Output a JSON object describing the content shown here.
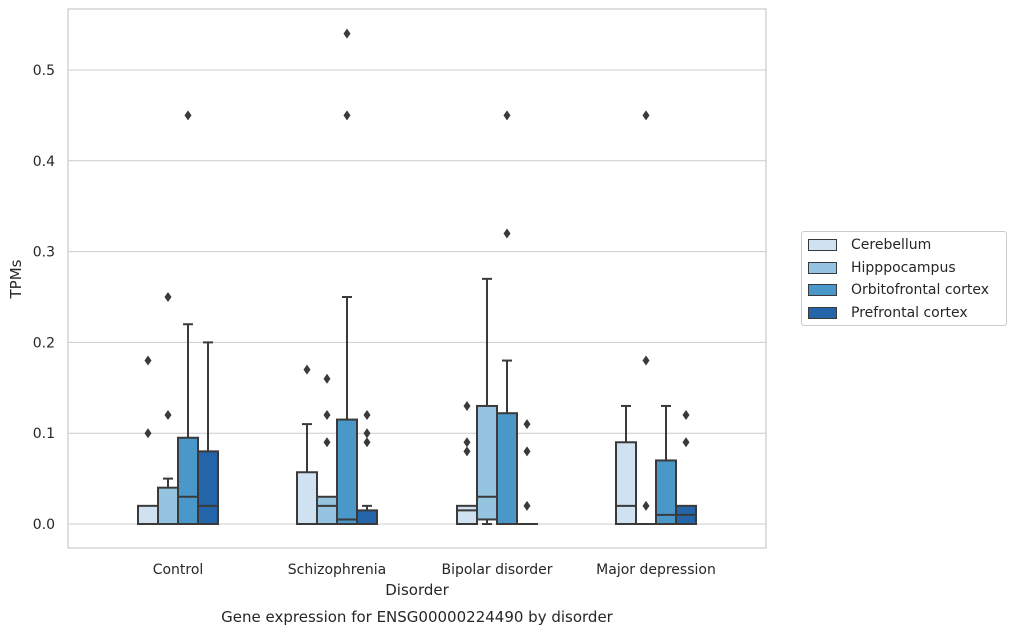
{
  "chart_data": {
    "type": "box",
    "title": "Gene expression for ENSG00000224490 by disorder",
    "xlabel": "Disorder",
    "ylabel": "TPMs",
    "ylim": [
      -0.026,
      0.567
    ],
    "yticks": [
      0.0,
      0.1,
      0.2,
      0.3,
      0.4,
      0.5
    ],
    "ytick_labels": [
      "0.0",
      "0.1",
      "0.2",
      "0.3",
      "0.4",
      "0.5"
    ],
    "grid": true,
    "legend_position": "right",
    "categories": [
      "Control",
      "Schizophrenia",
      "Bipolar disorder",
      "Major depression"
    ],
    "series": [
      {
        "name": "Cerebellum",
        "color": "#d0e1f2",
        "boxes": [
          {
            "whisker_low": 0.0,
            "q1": 0.0,
            "median": 0.0,
            "q3": 0.02,
            "whisker_high": 0.02,
            "outliers": [
              0.1,
              0.18
            ]
          },
          {
            "whisker_low": 0.0,
            "q1": 0.0,
            "median": 0.0,
            "q3": 0.057,
            "whisker_high": 0.11,
            "outliers": [
              0.17
            ]
          },
          {
            "whisker_low": 0.0,
            "q1": 0.0,
            "median": 0.015,
            "q3": 0.02,
            "whisker_high": 0.02,
            "outliers": [
              0.08,
              0.09,
              0.13
            ]
          },
          {
            "whisker_low": 0.0,
            "q1": 0.0,
            "median": 0.02,
            "q3": 0.09,
            "whisker_high": 0.13,
            "outliers": []
          }
        ]
      },
      {
        "name": "Hipppocampus",
        "color": "#94c4df",
        "boxes": [
          {
            "whisker_low": 0.0,
            "q1": 0.0,
            "median": 0.0,
            "q3": 0.04,
            "whisker_high": 0.05,
            "outliers": [
              0.12,
              0.25
            ]
          },
          {
            "whisker_low": 0.0,
            "q1": 0.0,
            "median": 0.02,
            "q3": 0.03,
            "whisker_high": 0.03,
            "outliers": [
              0.09,
              0.12,
              0.16
            ]
          },
          {
            "whisker_low": 0.0,
            "q1": 0.005,
            "median": 0.03,
            "q3": 0.13,
            "whisker_high": 0.27,
            "outliers": []
          },
          {
            "whisker_low": 0.0,
            "q1": 0.0,
            "median": 0.0,
            "q3": 0.0,
            "whisker_high": 0.0,
            "outliers": [
              0.02,
              0.18,
              0.45
            ]
          }
        ]
      },
      {
        "name": "Orbitofrontal cortex",
        "color": "#4a98c9",
        "boxes": [
          {
            "whisker_low": 0.0,
            "q1": 0.0,
            "median": 0.03,
            "q3": 0.095,
            "whisker_high": 0.22,
            "outliers": [
              0.45
            ]
          },
          {
            "whisker_low": 0.0,
            "q1": 0.0,
            "median": 0.005,
            "q3": 0.115,
            "whisker_high": 0.25,
            "outliers": [
              0.45,
              0.54
            ]
          },
          {
            "whisker_low": 0.0,
            "q1": 0.0,
            "median": 0.0,
            "q3": 0.122,
            "whisker_high": 0.18,
            "outliers": [
              0.32,
              0.45
            ]
          },
          {
            "whisker_low": 0.0,
            "q1": 0.0,
            "median": 0.01,
            "q3": 0.07,
            "whisker_high": 0.13,
            "outliers": []
          }
        ]
      },
      {
        "name": "Prefrontal cortex",
        "color": "#2464a8",
        "boxes": [
          {
            "whisker_low": 0.0,
            "q1": 0.0,
            "median": 0.02,
            "q3": 0.08,
            "whisker_high": 0.2,
            "outliers": []
          },
          {
            "whisker_low": 0.0,
            "q1": 0.0,
            "median": 0.0,
            "q3": 0.015,
            "whisker_high": 0.02,
            "outliers": [
              0.09,
              0.1,
              0.12
            ]
          },
          {
            "whisker_low": 0.0,
            "q1": 0.0,
            "median": 0.0,
            "q3": 0.0,
            "whisker_high": 0.0,
            "outliers": [
              0.02,
              0.08,
              0.11
            ]
          },
          {
            "whisker_low": 0.0,
            "q1": 0.0,
            "median": 0.01,
            "q3": 0.02,
            "whisker_high": 0.02,
            "outliers": [
              0.09,
              0.12
            ]
          }
        ]
      }
    ]
  }
}
